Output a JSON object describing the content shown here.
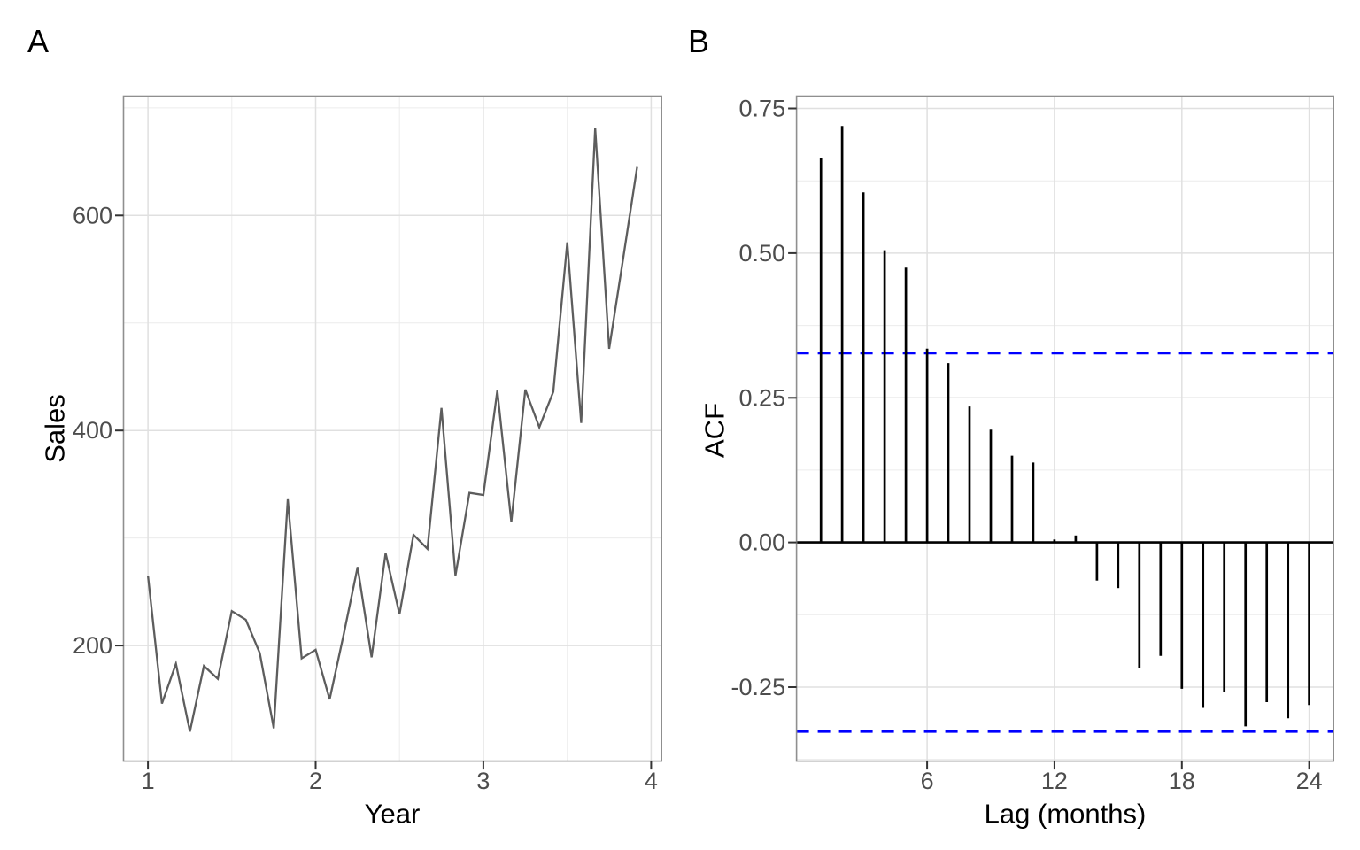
{
  "figure": {
    "type": "two-panel statistical figure",
    "background": "#ffffff",
    "panel_border_color": "#8f8f8f",
    "grid_major_color": "#e0e0e0",
    "grid_minor_color": "#ececec",
    "axis_text_color": "#4d4d4d",
    "axis_title_color": "#000000"
  },
  "chart_data": [
    {
      "tag": "A",
      "type": "line",
      "title": "",
      "xlabel": "Year",
      "ylabel": "Sales",
      "line_color": "#5d5d5d",
      "x_start": 1,
      "x_step": 0.0833333,
      "x": [
        1.0,
        1.0833,
        1.1667,
        1.25,
        1.3333,
        1.4167,
        1.5,
        1.5833,
        1.6667,
        1.75,
        1.8333,
        1.9167,
        2.0,
        2.0833,
        2.1667,
        2.25,
        2.3333,
        2.4167,
        2.5,
        2.5833,
        2.6667,
        2.75,
        2.8333,
        2.9167,
        3.0,
        3.0833,
        3.1667,
        3.25,
        3.3333,
        3.4167,
        3.5,
        3.5833,
        3.6667,
        3.75,
        3.8333,
        3.9167
      ],
      "values": [
        265,
        146,
        183,
        120,
        181,
        169,
        232,
        224,
        193,
        123,
        336,
        188,
        196,
        150,
        210,
        273,
        189,
        286,
        229,
        303,
        290,
        421,
        265,
        342,
        340,
        437,
        315,
        438,
        403,
        436,
        575,
        407,
        681,
        476,
        560,
        645
      ],
      "x_ticks": [
        {
          "v": 1,
          "label": "1"
        },
        {
          "v": 2,
          "label": "2"
        },
        {
          "v": 3,
          "label": "3"
        },
        {
          "v": 4,
          "label": "4"
        }
      ],
      "y_ticks": [
        {
          "v": 200,
          "label": "200"
        },
        {
          "v": 400,
          "label": "400"
        },
        {
          "v": 600,
          "label": "600"
        }
      ],
      "x_minor": [
        1.5,
        2.5,
        3.5
      ],
      "y_minor": [
        100,
        300,
        500,
        700
      ],
      "xlim": [
        0.8542,
        4.0625
      ],
      "ylim": [
        92.5,
        711
      ],
      "grid": true,
      "legend": "none"
    },
    {
      "tag": "B",
      "type": "bar",
      "subtype": "acf-lollipop",
      "title": "",
      "xlabel": "Lag (months)",
      "ylabel": "ACF",
      "bar_color": "#000000",
      "zero_line_color": "#000000",
      "conf_line_color": "#0000ff",
      "conf_bound": 0.327,
      "lags": [
        1,
        2,
        3,
        4,
        5,
        6,
        7,
        8,
        9,
        10,
        11,
        12,
        13,
        14,
        15,
        16,
        17,
        18,
        19,
        20,
        21,
        22,
        23,
        24
      ],
      "values": [
        0.665,
        0.72,
        0.605,
        0.505,
        0.475,
        0.335,
        0.31,
        0.235,
        0.195,
        0.15,
        0.138,
        0.005,
        0.012,
        -0.066,
        -0.079,
        -0.217,
        -0.196,
        -0.253,
        -0.286,
        -0.258,
        -0.318,
        -0.276,
        -0.304,
        -0.281
      ],
      "x_ticks": [
        {
          "v": 6,
          "label": "6"
        },
        {
          "v": 12,
          "label": "12"
        },
        {
          "v": 18,
          "label": "18"
        },
        {
          "v": 24,
          "label": "24"
        }
      ],
      "y_ticks": [
        {
          "v": -0.25,
          "label": "-0.25"
        },
        {
          "v": 0.0,
          "label": "0.00"
        },
        {
          "v": 0.25,
          "label": "0.25"
        },
        {
          "v": 0.5,
          "label": "0.50"
        },
        {
          "v": 0.75,
          "label": "0.75"
        }
      ],
      "x_minor": [],
      "y_minor": [
        -0.375,
        -0.125,
        0.125,
        0.375,
        0.625
      ],
      "xlim": [
        -0.15,
        25.15
      ],
      "ylim": [
        -0.378,
        0.7715
      ],
      "grid": true,
      "legend": "none"
    }
  ]
}
